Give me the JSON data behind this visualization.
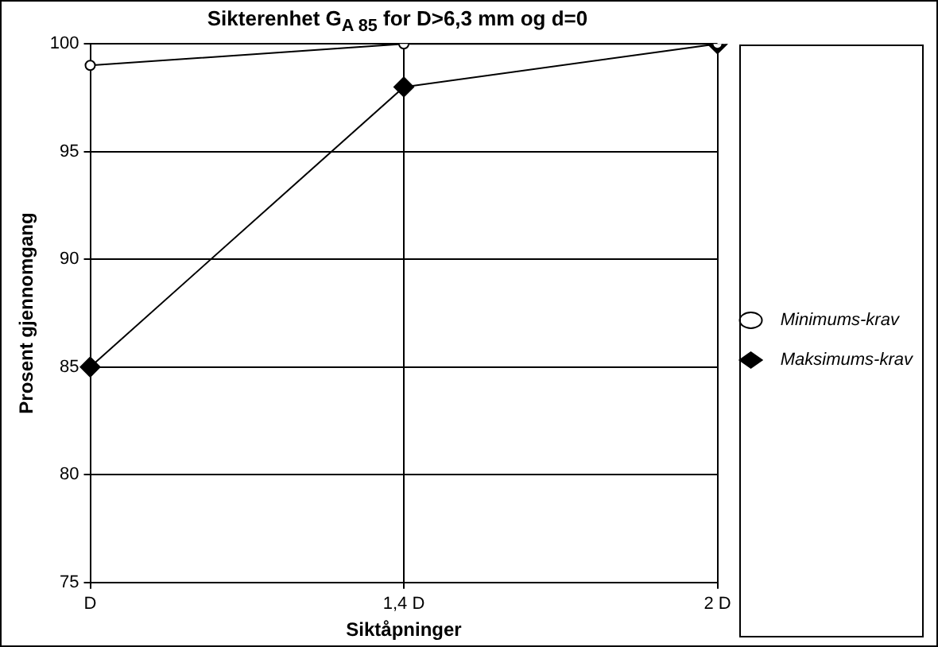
{
  "chart_data": {
    "type": "line",
    "title": "Sikterenhet G$_{A 85}$ for D>6,3 mm og d=0",
    "xlabel": "Siktåpninger",
    "ylabel": "Prosent gjennomgang",
    "categories": [
      "D",
      "1,4 D",
      "2 D"
    ],
    "series": [
      {
        "name": "Maksimums-krav",
        "color": "#000000",
        "marker": "diamond",
        "values": [
          85,
          98,
          100
        ]
      },
      {
        "name": "Minimums-krav",
        "color": "#000000",
        "marker": "circle",
        "values": [
          99,
          100,
          100
        ]
      }
    ],
    "ylim": [
      75,
      100
    ],
    "yticks": [
      75,
      80,
      85,
      90,
      95,
      100
    ],
    "grid": true,
    "legend": "right",
    "line_style": "solid"
  }
}
